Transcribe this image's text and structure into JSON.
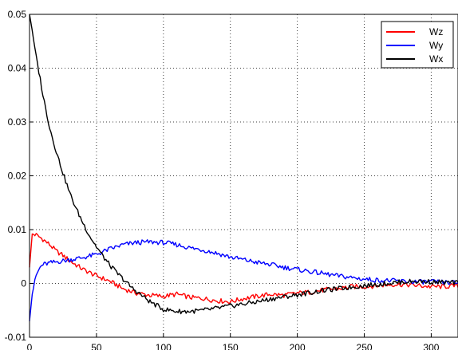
{
  "chart_data": {
    "type": "line",
    "title": "",
    "xlabel": "",
    "ylabel": "",
    "xlim": [
      0,
      320
    ],
    "ylim": [
      -0.01,
      0.05
    ],
    "grid": true,
    "legend_position": "top-right",
    "x_ticks": [
      0,
      50,
      100,
      150,
      200,
      250,
      300
    ],
    "x_tick_labels": [
      "0",
      "50",
      "100",
      "150",
      "200",
      "250",
      "300"
    ],
    "y_ticks": [
      -0.01,
      0,
      0.01,
      0.02,
      0.03,
      0.04,
      0.05
    ],
    "y_tick_labels": [
      "-0.01",
      "0",
      "0.01",
      "0.02",
      "0.03",
      "0.04",
      "0.05"
    ],
    "series": [
      {
        "name": "Wz",
        "color": "#ff0000",
        "x": [
          0,
          2,
          5,
          10,
          15,
          20,
          25,
          30,
          40,
          50,
          60,
          70,
          80,
          90,
          100,
          110,
          120,
          130,
          140,
          150,
          160,
          170,
          180,
          190,
          200,
          210,
          220,
          230,
          240,
          250,
          260,
          270,
          280,
          290,
          300,
          310,
          320
        ],
        "values": [
          0.003,
          0.0092,
          0.009,
          0.0082,
          0.0072,
          0.006,
          0.0052,
          0.0042,
          0.0026,
          0.0014,
          0.0004,
          -0.001,
          -0.0018,
          -0.0022,
          -0.0024,
          -0.002,
          -0.0026,
          -0.0028,
          -0.0032,
          -0.0034,
          -0.0028,
          -0.0024,
          -0.002,
          -0.0022,
          -0.0018,
          -0.0016,
          -0.0012,
          -0.001,
          -0.0006,
          -0.0006,
          -0.0004,
          -0.0002,
          -0.0002,
          -0.0004,
          -0.0006,
          -0.0006,
          -0.0004
        ]
      },
      {
        "name": "Wy",
        "color": "#0000ff",
        "x": [
          0,
          2,
          5,
          8,
          10,
          15,
          20,
          25,
          30,
          40,
          50,
          60,
          70,
          80,
          90,
          100,
          110,
          120,
          130,
          140,
          150,
          160,
          170,
          180,
          190,
          200,
          210,
          220,
          230,
          240,
          250,
          260,
          270,
          280,
          290,
          300,
          310,
          320
        ],
        "values": [
          -0.007,
          -0.002,
          0.0015,
          0.003,
          0.0035,
          0.0038,
          0.004,
          0.0042,
          0.0044,
          0.0048,
          0.0054,
          0.0064,
          0.0072,
          0.0076,
          0.0077,
          0.0076,
          0.0072,
          0.0066,
          0.0062,
          0.0056,
          0.0049,
          0.0044,
          0.0039,
          0.0035,
          0.003,
          0.0026,
          0.0022,
          0.0018,
          0.0014,
          0.0011,
          0.0008,
          0.0006,
          0.0005,
          0.0004,
          0.0003,
          0.0003,
          0.0002,
          0.0001
        ]
      },
      {
        "name": "Wx",
        "color": "#000000",
        "x": [
          0,
          2,
          5,
          8,
          10,
          15,
          20,
          25,
          30,
          35,
          40,
          45,
          50,
          55,
          60,
          65,
          70,
          75,
          80,
          90,
          100,
          110,
          120,
          130,
          140,
          150,
          160,
          170,
          180,
          190,
          200,
          210,
          220,
          230,
          240,
          250,
          260,
          270,
          280,
          290,
          300,
          310,
          320
        ],
        "values": [
          0.05,
          0.047,
          0.042,
          0.038,
          0.035,
          0.029,
          0.0245,
          0.0205,
          0.0168,
          0.0138,
          0.0112,
          0.0088,
          0.0068,
          0.005,
          0.0034,
          0.002,
          0.0008,
          -0.0005,
          -0.0015,
          -0.0034,
          -0.0048,
          -0.0052,
          -0.0052,
          -0.005,
          -0.0046,
          -0.0042,
          -0.0038,
          -0.0034,
          -0.0029,
          -0.0025,
          -0.0021,
          -0.0017,
          -0.0013,
          -0.001,
          -0.0007,
          -0.0004,
          -0.0002,
          0.0001,
          0.0003,
          0.0004,
          0.0003,
          0.0002,
          0.0001
        ]
      }
    ]
  }
}
